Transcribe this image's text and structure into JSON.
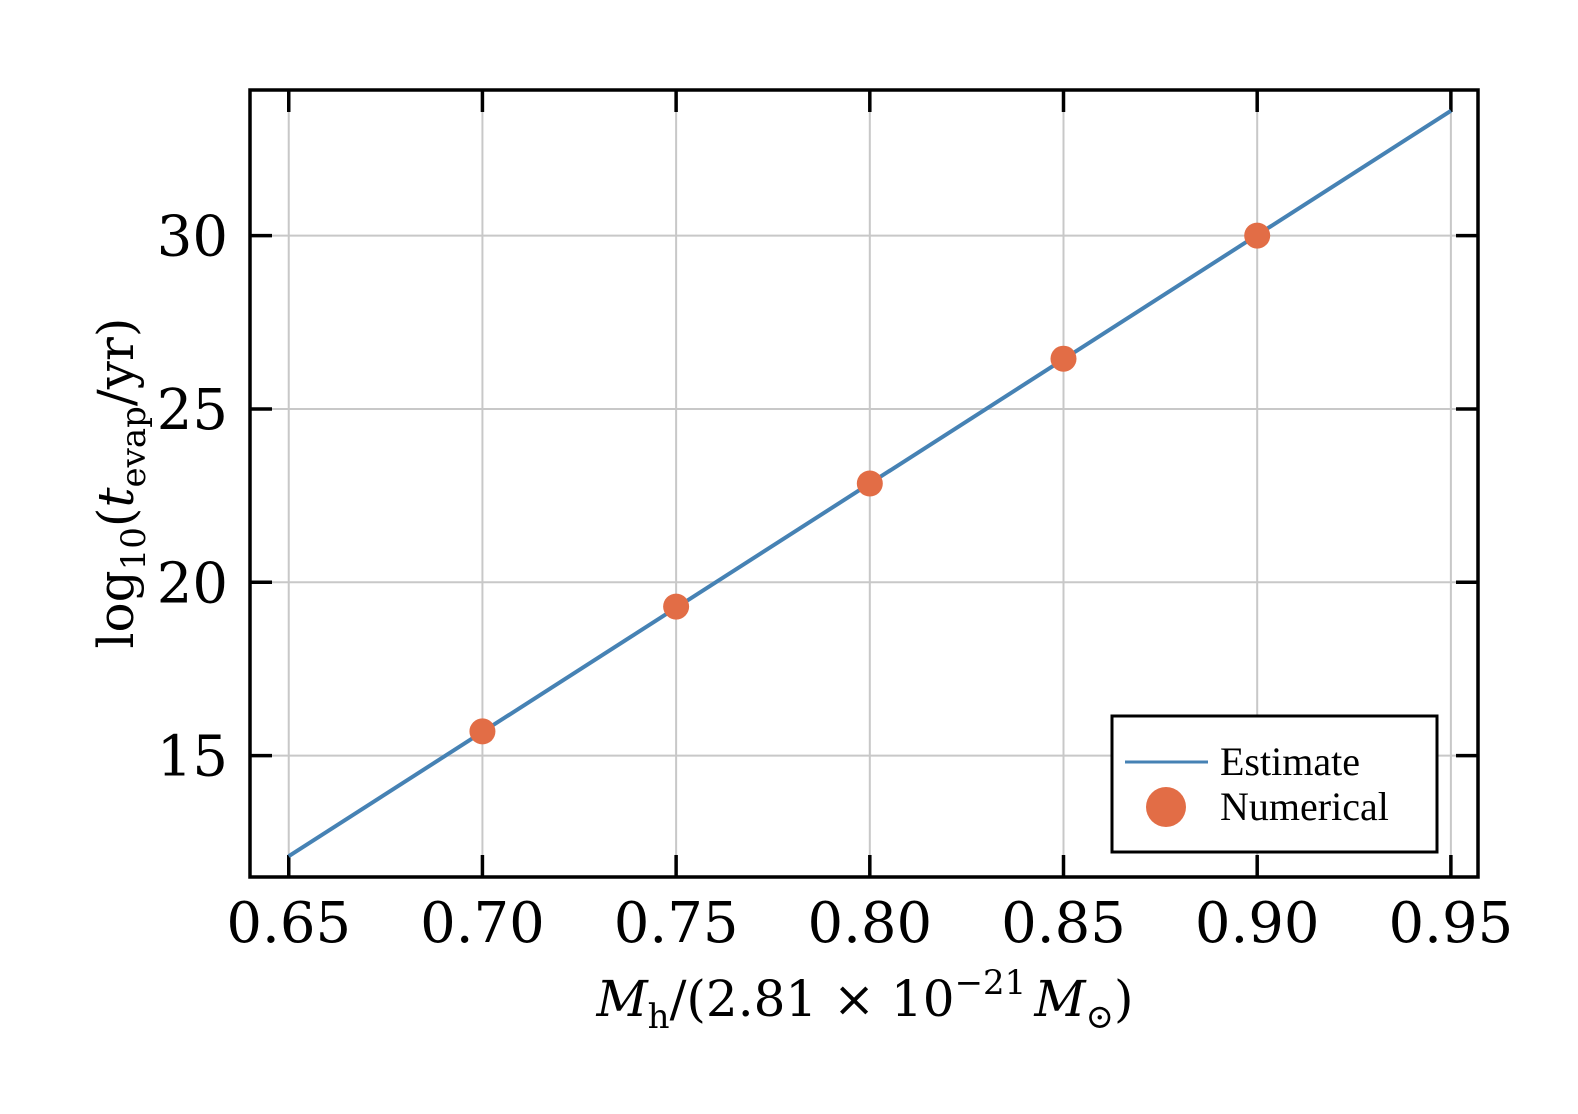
{
  "chart_data": {
    "type": "line",
    "title": "",
    "xlabel": {
      "var": "M",
      "var_sub": "h",
      "rest": "/(2.81 × 10",
      "exp": "−21",
      "unit": "M",
      "unit_sub": "⊙",
      "close": ")"
    },
    "ylabel": {
      "fn": "log",
      "fn_sub": "10",
      "open": "(",
      "var": "t",
      "var_sub": "evap",
      "rest": "/yr)"
    },
    "xlim": [
      0.64,
      0.957
    ],
    "ylim": [
      11.5,
      34.2
    ],
    "xticks": [
      "0.65",
      "0.70",
      "0.75",
      "0.80",
      "0.85",
      "0.90",
      "0.95"
    ],
    "xtick_values": [
      0.65,
      0.7,
      0.75,
      0.8,
      0.85,
      0.9,
      0.95
    ],
    "yticks": [
      "15",
      "20",
      "25",
      "30"
    ],
    "ytick_values": [
      15,
      20,
      25,
      30
    ],
    "grid": true,
    "legend_position": "bottom-right",
    "series": [
      {
        "name": "Estimate",
        "kind": "line",
        "color": "#4682b4",
        "x": [
          0.65,
          0.95
        ],
        "y": [
          12.1,
          33.6
        ]
      },
      {
        "name": "Numerical",
        "kind": "scatter",
        "color": "#e26d46",
        "x": [
          0.7,
          0.75,
          0.8,
          0.85,
          0.9
        ],
        "y": [
          15.7,
          19.3,
          22.85,
          26.45,
          30.0
        ]
      }
    ]
  }
}
